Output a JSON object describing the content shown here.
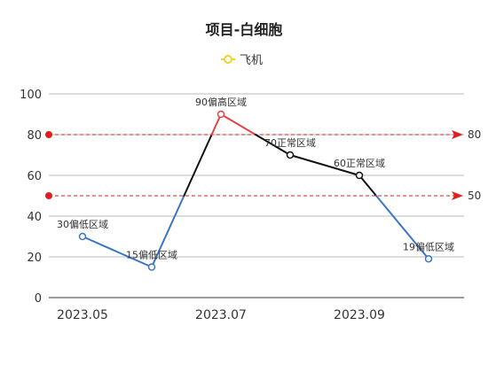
{
  "chart_data": {
    "type": "line",
    "title": "项目-白细胞",
    "x": [
      "2023.05",
      "2023.06",
      "2023.07",
      "2023.08",
      "2023.09",
      "2023.10"
    ],
    "x_tick_labels": [
      "2023.05",
      "2023.07",
      "2023.09"
    ],
    "series": [
      {
        "name": "飞机",
        "values": [
          30,
          15,
          90,
          70,
          60,
          19
        ],
        "point_labels": [
          "30偏低区域",
          "15偏低区域",
          "90偏高区域",
          "70正常区域",
          "60正常区域",
          "19偏低区域"
        ]
      }
    ],
    "ylim": [
      0,
      100
    ],
    "y_ticks": [
      0,
      20,
      40,
      60,
      80,
      100
    ],
    "grid": true,
    "legend_position": "top-center",
    "mark_lines": [
      {
        "value": 80,
        "label": "80"
      },
      {
        "value": 50,
        "label": "50"
      }
    ],
    "colors": {
      "below": "#3a75c4",
      "above": "#e04545",
      "normal": "#111111",
      "mark_line": "#cc2222",
      "legend_symbol": "#f2d22c",
      "grid": "#bbbbbb"
    }
  }
}
